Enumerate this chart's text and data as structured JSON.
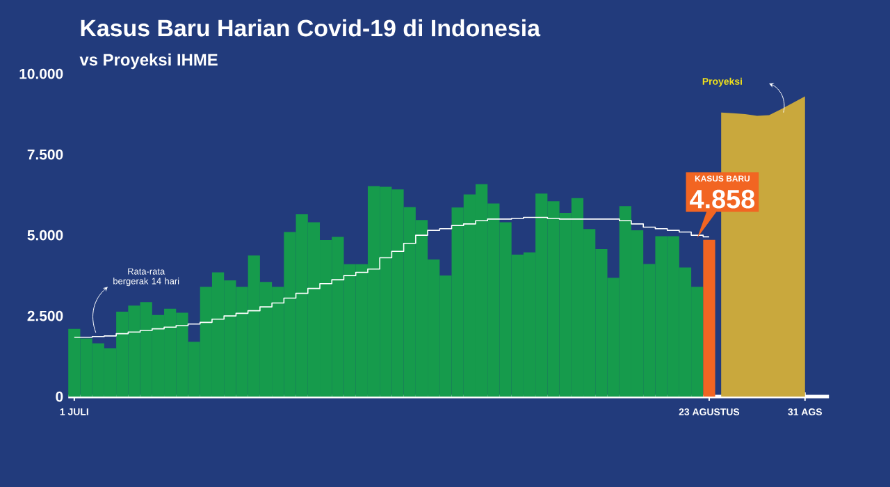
{
  "chart_data": {
    "type": "bar",
    "title": "Kasus Baru Harian Covid-19 di Indonesia",
    "subtitle": "vs Proyeksi IHME",
    "categories": [
      "1 JULI",
      null,
      null,
      null,
      null,
      null,
      null,
      null,
      null,
      null,
      null,
      null,
      null,
      null,
      null,
      null,
      null,
      null,
      null,
      null,
      null,
      null,
      null,
      null,
      null,
      null,
      null,
      null,
      null,
      null,
      null,
      null,
      null,
      null,
      null,
      null,
      null,
      null,
      null,
      null,
      null,
      null,
      null,
      null,
      null,
      null,
      null,
      null,
      null,
      null,
      null,
      null,
      null,
      "23 AGUSTUS",
      null,
      null,
      null,
      null,
      null,
      null,
      null,
      "31 AGS"
    ],
    "series": [
      {
        "color": "#169b4c",
        "values": [
          2100,
          1800,
          1650,
          1500,
          2630,
          2820,
          2930,
          2530,
          2720,
          2600,
          1700,
          3400,
          3850,
          3600,
          3400,
          4370,
          3550,
          3400,
          5100,
          5650,
          5400,
          4850,
          4950,
          4100,
          4100,
          6520,
          6500,
          6420,
          5870,
          5470,
          4250,
          3750,
          5860,
          6260,
          6580,
          5980,
          5400,
          4400,
          4470,
          6290,
          6050,
          5690,
          6150,
          5190,
          4570,
          3680,
          5900,
          5150,
          4110,
          4970,
          4970,
          4000,
          3400,
          null,
          null,
          null,
          null,
          null,
          null,
          null,
          null,
          null
        ]
      },
      {
        "color": "#f26522",
        "values": [
          null,
          null,
          null,
          null,
          null,
          null,
          null,
          null,
          null,
          null,
          null,
          null,
          null,
          null,
          null,
          null,
          null,
          null,
          null,
          null,
          null,
          null,
          null,
          null,
          null,
          null,
          null,
          null,
          null,
          null,
          null,
          null,
          null,
          null,
          null,
          null,
          null,
          null,
          null,
          null,
          null,
          null,
          null,
          null,
          null,
          null,
          null,
          null,
          null,
          null,
          null,
          null,
          null,
          4858,
          null,
          null,
          null,
          null,
          null,
          null,
          null,
          null
        ],
        "value_labels": [
          null,
          null,
          null,
          null,
          null,
          null,
          null,
          null,
          null,
          null,
          null,
          null,
          null,
          null,
          null,
          null,
          null,
          null,
          null,
          null,
          null,
          null,
          null,
          null,
          null,
          null,
          null,
          null,
          null,
          null,
          null,
          null,
          null,
          null,
          null,
          null,
          null,
          null,
          null,
          null,
          null,
          null,
          null,
          null,
          null,
          null,
          null,
          null,
          null,
          null,
          null,
          null,
          null,
          "4.858",
          null,
          null,
          null,
          null,
          null,
          null,
          null,
          null
        ]
      },
      {
        "type": "area",
        "color": "#c9a83d",
        "values": [
          null,
          null,
          null,
          null,
          null,
          null,
          null,
          null,
          null,
          null,
          null,
          null,
          null,
          null,
          null,
          null,
          null,
          null,
          null,
          null,
          null,
          null,
          null,
          null,
          null,
          null,
          null,
          null,
          null,
          null,
          null,
          null,
          null,
          null,
          null,
          null,
          null,
          null,
          null,
          null,
          null,
          null,
          null,
          null,
          null,
          null,
          null,
          null,
          null,
          null,
          null,
          null,
          null,
          null,
          8800,
          8780,
          8750,
          8700,
          8720,
          8900,
          9100,
          9300
        ]
      },
      {
        "type": "step",
        "color": "#ffffff",
        "values": [
          1840,
          1840,
          1860,
          1880,
          1950,
          2000,
          2050,
          2100,
          2150,
          2200,
          2250,
          2300,
          2400,
          2500,
          2580,
          2660,
          2780,
          2900,
          3050,
          3200,
          3350,
          3500,
          3620,
          3750,
          3850,
          3950,
          4300,
          4500,
          4750,
          5000,
          5150,
          5200,
          5300,
          5350,
          5450,
          5500,
          5500,
          5520,
          5550,
          5550,
          5520,
          5500,
          5500,
          5500,
          5500,
          5500,
          5450,
          5350,
          5250,
          5200,
          5150,
          5100,
          5000,
          4950,
          null,
          null,
          null,
          null,
          null,
          null,
          null,
          null
        ]
      }
    ],
    "ylim": [
      0,
      10000
    ],
    "yticks": [
      0,
      {
        "value": 2500,
        "label": "2.500"
      },
      {
        "value": 5000,
        "label": "5.000"
      },
      {
        "value": 7500,
        "label": "7.500"
      },
      {
        "value": 10000,
        "label": "10.000"
      }
    ],
    "annotations": [
      "Rata-rata bergerak 14 hari",
      "Proyeksi",
      "KASUS BARU"
    ]
  }
}
